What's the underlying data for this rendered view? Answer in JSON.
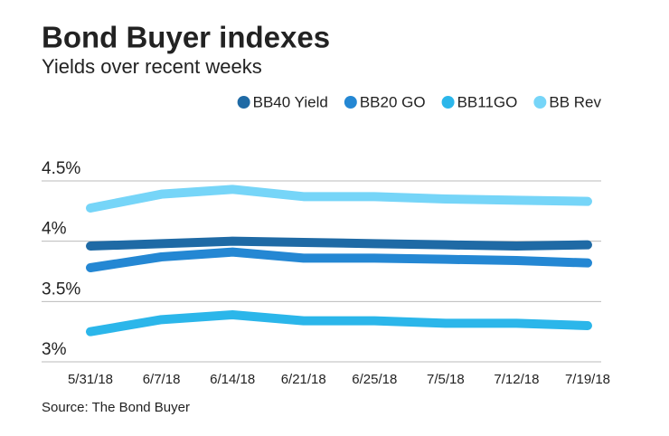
{
  "chart_data": {
    "type": "line",
    "title": "Bond Buyer indexes",
    "subtitle": "Yields over recent weeks",
    "source": "Source: The Bond Buyer",
    "categories": [
      "5/31/18",
      "6/7/18",
      "6/14/18",
      "6/21/18",
      "6/25/18",
      "7/5/18",
      "7/12/18",
      "7/19/18"
    ],
    "series": [
      {
        "name": "BB40 Yield",
        "color": "#1f6aa5",
        "values": [
          3.96,
          3.98,
          4.0,
          3.99,
          3.98,
          3.97,
          3.96,
          3.97
        ]
      },
      {
        "name": "BB20 GO",
        "color": "#2487d3",
        "values": [
          3.78,
          3.87,
          3.91,
          3.86,
          3.86,
          3.85,
          3.84,
          3.82
        ]
      },
      {
        "name": "BB11GO",
        "color": "#2bb6ea",
        "values": [
          3.25,
          3.35,
          3.39,
          3.34,
          3.34,
          3.32,
          3.32,
          3.3
        ]
      },
      {
        "name": "BB Rev",
        "color": "#76d5f8",
        "values": [
          4.275,
          4.39,
          4.43,
          4.37,
          4.37,
          4.35,
          4.34,
          4.33
        ]
      }
    ],
    "ylim": [
      3,
      4.5
    ],
    "yticks": [
      {
        "value": 3,
        "label": "3%"
      },
      {
        "value": 3.5,
        "label": "3.5%"
      },
      {
        "value": 4,
        "label": "4%"
      },
      {
        "value": 4.5,
        "label": "4.5%"
      }
    ],
    "grid": true,
    "legend": "top"
  }
}
